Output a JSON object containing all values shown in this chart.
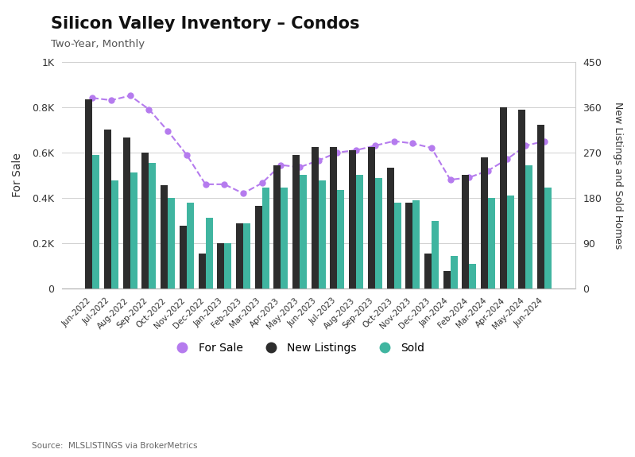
{
  "title": "Silicon Valley Inventory – Condos",
  "subtitle": "Two-Year, Monthly",
  "source": "Source:  MLSLISTINGS via BrokerMetrics",
  "categories": [
    "Jun-2022",
    "Jul-2022",
    "Aug-2022",
    "Sep-2022",
    "Oct-2022",
    "Nov-2022",
    "Dec-2022",
    "Jan-2023",
    "Feb-2023",
    "Mar-2023",
    "Apr-2023",
    "May-2023",
    "Jun-2023",
    "Jul-2023",
    "Aug-2023",
    "Sep-2023",
    "Oct-2023",
    "Nov-2023",
    "Dec-2023",
    "Jan-2024",
    "Feb-2024",
    "Mar-2024",
    "Apr-2024",
    "May-2024",
    "Jun-2024"
  ],
  "for_sale": [
    840,
    830,
    850,
    790,
    695,
    590,
    460,
    460,
    420,
    465,
    545,
    535,
    565,
    600,
    610,
    630,
    650,
    640,
    620,
    480,
    490,
    520,
    570,
    630,
    650
  ],
  "new_listings": [
    375,
    315,
    300,
    270,
    205,
    125,
    70,
    90,
    130,
    165,
    245,
    265,
    280,
    280,
    275,
    280,
    240,
    170,
    70,
    35,
    225,
    260,
    360,
    355,
    325
  ],
  "sold": [
    265,
    215,
    230,
    250,
    180,
    170,
    140,
    90,
    130,
    200,
    200,
    225,
    215,
    195,
    225,
    220,
    170,
    175,
    135,
    65,
    50,
    180,
    185,
    245,
    200
  ],
  "for_sale_color": "#b57bee",
  "new_listings_color": "#2d2d2d",
  "sold_color": "#40b5a0",
  "background_color": "#ffffff",
  "ylabel_left": "For Sale",
  "ylabel_right": "New Listings and Sold Homes",
  "ylim_left": [
    0,
    1000
  ],
  "ylim_right": [
    0,
    450
  ],
  "yticks_left": [
    0,
    200,
    400,
    600,
    800,
    1000
  ],
  "ytick_labels_left": [
    "0",
    "0.2K",
    "0.4K",
    "0.6K",
    "0.8K",
    "1K"
  ],
  "yticks_right": [
    0,
    90,
    180,
    270,
    360,
    450
  ],
  "ytick_labels_right": [
    "0",
    "90",
    "180",
    "270",
    "360",
    "450"
  ]
}
